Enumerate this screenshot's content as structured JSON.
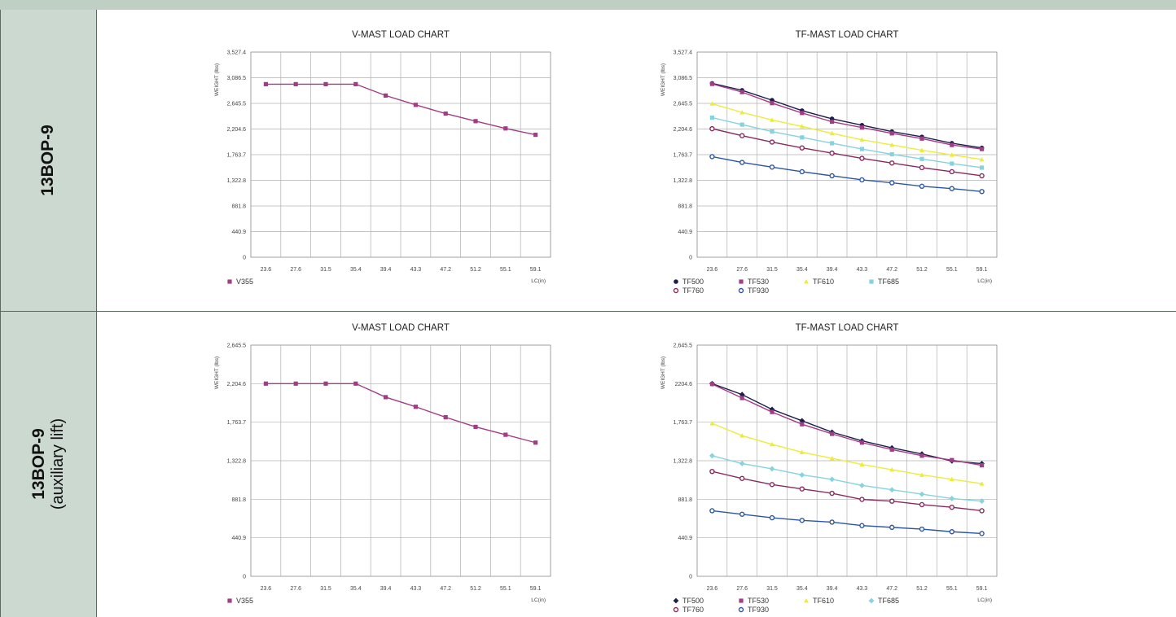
{
  "rows": [
    {
      "label": "13BOP-9",
      "sublabel": ""
    },
    {
      "label": "13BOP-9",
      "sublabel": "(auxiliary lift)"
    }
  ],
  "colors": {
    "V355": "#a33c86",
    "TF500": "#1c1f4a",
    "TF530": "#a33c86",
    "TF610": "#ecec3a",
    "TF685": "#85d3df",
    "TF760": "#8a2a5e",
    "TF930": "#2c56a3"
  },
  "chart_data": [
    {
      "type": "line",
      "title": "V-MAST LOAD CHART",
      "ylabel": "WEIGHT (lbs)",
      "xlabel": "LC(in)",
      "ylim": [
        0,
        3527.4
      ],
      "yticks": [
        "3,527.4",
        "3,086.5",
        "2,645.5",
        "2,204.6",
        "1,763.7",
        "1,322.8",
        "881.8",
        "440.9",
        "0"
      ],
      "categories": [
        "23.6",
        "27.6",
        "31.5",
        "35.4",
        "39.4",
        "43.3",
        "47.2",
        "51.2",
        "55.1",
        "59.1"
      ],
      "legend_position": "bottom-left",
      "grid": true,
      "series": [
        {
          "name": "V355",
          "marker": "square",
          "values": [
            2976,
            2976,
            2976,
            2976,
            2780,
            2620,
            2470,
            2340,
            2215,
            2105
          ]
        }
      ]
    },
    {
      "type": "line",
      "title": "TF-MAST LOAD CHART",
      "ylabel": "WEIGHT (lbs)",
      "xlabel": "LC(in)",
      "ylim": [
        0,
        3527.4
      ],
      "yticks": [
        "3,527.4",
        "3,086.5",
        "2,645.5",
        "2,204.6",
        "1,763.7",
        "1,322.8",
        "881.8",
        "440.9",
        "0"
      ],
      "categories": [
        "23.6",
        "27.6",
        "31.5",
        "35.4",
        "39.4",
        "43.3",
        "47.2",
        "51.2",
        "55.1",
        "59.1"
      ],
      "legend_position": "bottom-left",
      "grid": true,
      "series": [
        {
          "name": "TF500",
          "marker": "filled-circle",
          "values": [
            2990,
            2870,
            2700,
            2520,
            2380,
            2270,
            2160,
            2070,
            1960,
            1880
          ]
        },
        {
          "name": "TF530",
          "marker": "square",
          "values": [
            2980,
            2840,
            2650,
            2480,
            2330,
            2230,
            2130,
            2040,
            1930,
            1860
          ]
        },
        {
          "name": "TF610",
          "marker": "triangle",
          "values": [
            2640,
            2490,
            2360,
            2250,
            2130,
            2020,
            1930,
            1840,
            1760,
            1680
          ]
        },
        {
          "name": "TF685",
          "marker": "square",
          "values": [
            2400,
            2280,
            2160,
            2060,
            1960,
            1860,
            1770,
            1690,
            1610,
            1540
          ]
        },
        {
          "name": "TF760",
          "marker": "open-circle",
          "values": [
            2210,
            2090,
            1980,
            1880,
            1790,
            1700,
            1620,
            1540,
            1470,
            1400
          ]
        },
        {
          "name": "TF930",
          "marker": "open-circle",
          "values": [
            1730,
            1630,
            1550,
            1470,
            1400,
            1330,
            1280,
            1220,
            1180,
            1130
          ]
        }
      ]
    },
    {
      "type": "line",
      "title": "V-MAST LOAD CHART",
      "ylabel": "WEIGHT (lbs)",
      "xlabel": "LC(in)",
      "ylim": [
        0,
        2645.5
      ],
      "yticks": [
        "2,645.5",
        "2,204.6",
        "1,763.7",
        "1,322.8",
        "881.8",
        "440.9",
        "0"
      ],
      "categories": [
        "23.6",
        "27.6",
        "31.5",
        "35.4",
        "39.4",
        "43.3",
        "47.2",
        "51.2",
        "55.1",
        "59.1"
      ],
      "legend_position": "bottom-left",
      "grid": true,
      "series": [
        {
          "name": "V355",
          "marker": "square",
          "values": [
            2205,
            2205,
            2205,
            2205,
            2050,
            1940,
            1820,
            1710,
            1620,
            1530
          ]
        }
      ]
    },
    {
      "type": "line",
      "title": "TF-MAST LOAD CHART",
      "ylabel": "WEIGHT (lbs)",
      "xlabel": "LC(in)",
      "ylim": [
        0,
        2645.5
      ],
      "yticks": [
        "2,645.5",
        "2204.6",
        "1,763.7",
        "1,322.8",
        "881.8",
        "440.9",
        "0"
      ],
      "categories": [
        "23.6",
        "27.6",
        "31.5",
        "35.4",
        "39.4",
        "43.3",
        "47.2",
        "51.2",
        "55.1",
        "59.1"
      ],
      "legend_position": "bottom-left",
      "grid": true,
      "series": [
        {
          "name": "TF500",
          "marker": "filled-diamond",
          "values": [
            2205,
            2080,
            1910,
            1780,
            1650,
            1550,
            1470,
            1400,
            1320,
            1290
          ]
        },
        {
          "name": "TF530",
          "marker": "square",
          "values": [
            2200,
            2040,
            1880,
            1740,
            1630,
            1530,
            1450,
            1380,
            1330,
            1270
          ]
        },
        {
          "name": "TF610",
          "marker": "triangle",
          "values": [
            1750,
            1610,
            1510,
            1420,
            1350,
            1280,
            1220,
            1160,
            1110,
            1060
          ]
        },
        {
          "name": "TF685",
          "marker": "diamond",
          "values": [
            1380,
            1290,
            1230,
            1160,
            1110,
            1040,
            990,
            940,
            890,
            860
          ]
        },
        {
          "name": "TF760",
          "marker": "open-circle",
          "values": [
            1200,
            1120,
            1050,
            1000,
            950,
            880,
            860,
            820,
            790,
            750
          ]
        },
        {
          "name": "TF930",
          "marker": "open-circle",
          "values": [
            750,
            710,
            670,
            640,
            620,
            580,
            560,
            540,
            510,
            490
          ]
        }
      ]
    }
  ]
}
